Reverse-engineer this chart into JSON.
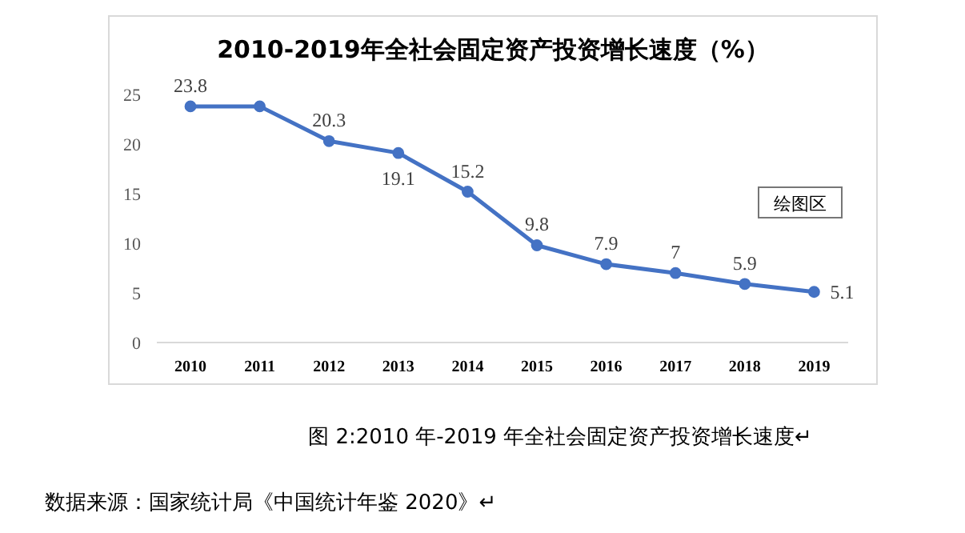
{
  "chart_data": {
    "type": "line",
    "title": "2010-2019年全社会固定资产投资增长速度（%）",
    "categories": [
      "2010",
      "2011",
      "2012",
      "2013",
      "2014",
      "2015",
      "2016",
      "2017",
      "2018",
      "2019"
    ],
    "series": [
      {
        "color": "#4472c4",
        "values": [
          23.8,
          23.8,
          20.3,
          19.1,
          15.2,
          9.8,
          7.9,
          7.0,
          5.9,
          5.1
        ],
        "value_labels": [
          "23.8",
          null,
          "20.3",
          "19.1",
          "15.2",
          "9.8",
          "7.9",
          "7",
          "5.9",
          "5.1"
        ]
      }
    ],
    "ylim": [
      0,
      25
    ],
    "yticks": [
      0,
      5,
      10,
      15,
      20,
      25
    ],
    "grid": false,
    "marker": "circle",
    "line_style": "solid",
    "annotations": [
      "绘图区",
      "图 2:2010 年-2019 年全社会固定资产投资增长速度↵",
      "数据来源：国家统计局《中国统计年鉴 2020》↵"
    ]
  }
}
